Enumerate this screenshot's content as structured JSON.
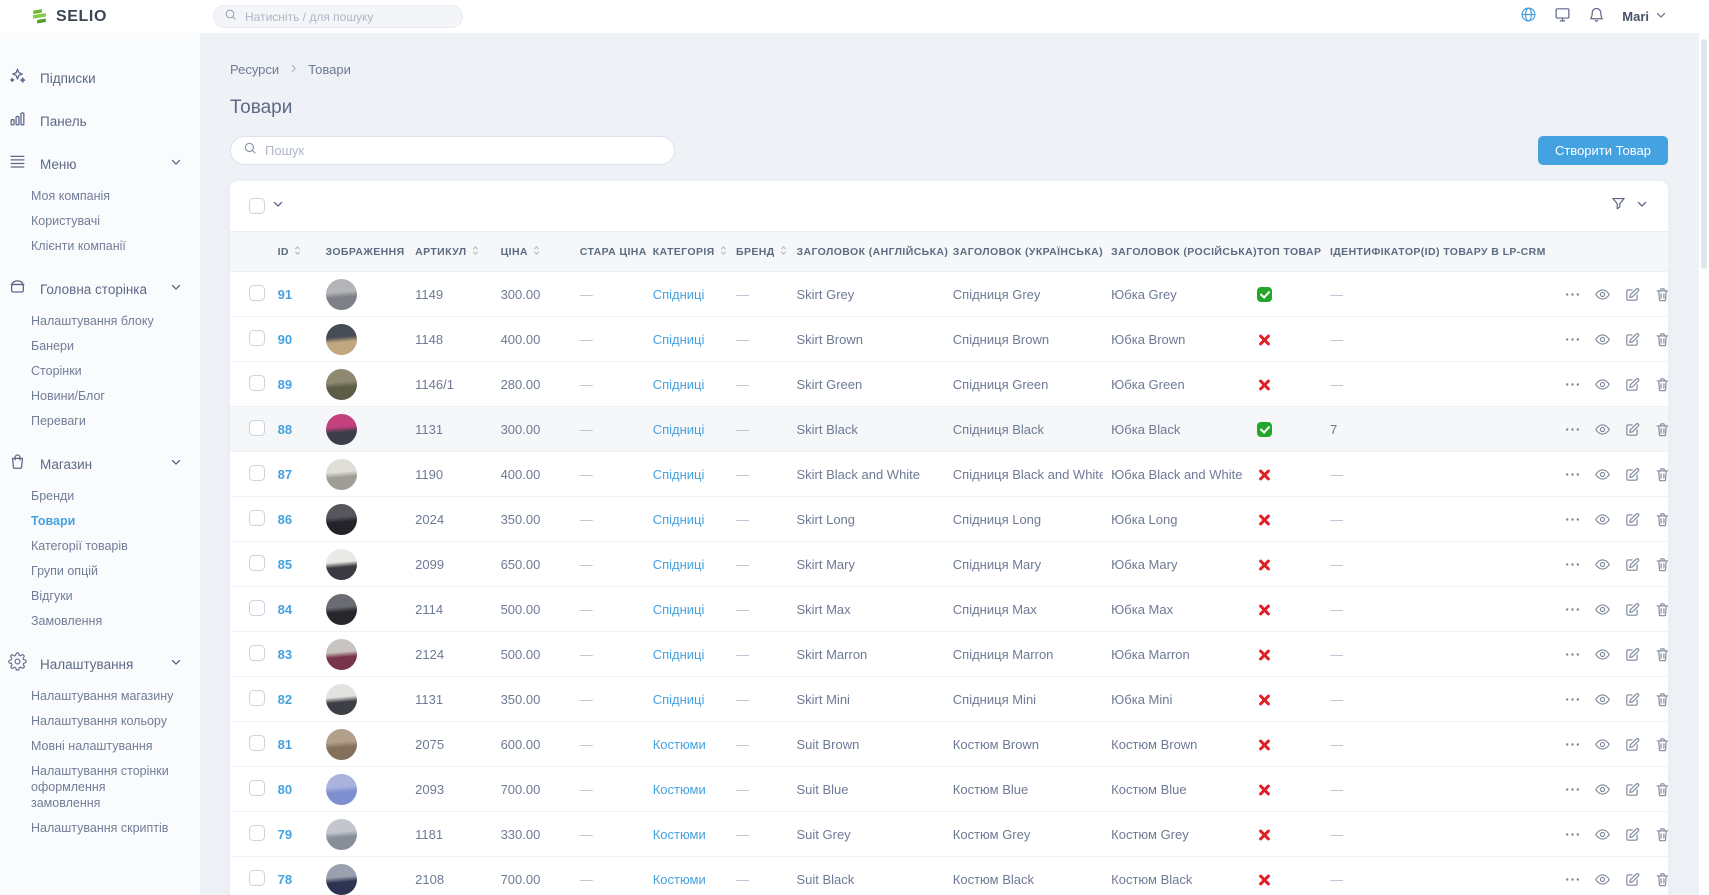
{
  "brand": {
    "name": "SELIO"
  },
  "colors": {
    "accent_blue": "#45a2e0",
    "success_green": "#23a62a",
    "danger_red": "#df1f26"
  },
  "topbar": {
    "search_placeholder": "Натисніть / для пошуку",
    "user": "Mari",
    "icons": [
      "globe-icon",
      "monitor-icon",
      "bell-icon"
    ]
  },
  "sidebar": {
    "sections": [
      {
        "id": "subscriptions",
        "label": "Підписки",
        "icon": "sparkles-icon",
        "children": []
      },
      {
        "id": "dashboard",
        "label": "Панель",
        "icon": "bar-chart-icon",
        "children": []
      },
      {
        "id": "menu",
        "label": "Меню",
        "icon": "menu-icon",
        "expanded": true,
        "children": [
          "Моя компанія",
          "Користувачі",
          "Клієнти компанії"
        ]
      },
      {
        "id": "home-page",
        "label": "Головна сторінка",
        "icon": "home-page-icon",
        "expanded": true,
        "children": [
          "Налаштування блоку",
          "Банери",
          "Сторінки",
          "Новини/Блог",
          "Переваги"
        ]
      },
      {
        "id": "shop",
        "label": "Магазин",
        "icon": "shop-bag-icon",
        "expanded": true,
        "children": [
          "Бренди",
          "Товари",
          "Категорії товарів",
          "Групи опцій",
          "Відгуки",
          "Замовлення"
        ],
        "active_child": "Товари"
      },
      {
        "id": "settings",
        "label": "Налаштування",
        "icon": "gear-icon",
        "expanded": true,
        "children": [
          "Налаштування магазину",
          "Налаштування кольору",
          "Мовні налаштування",
          "Налаштування сторінки оформлення замовлення",
          "Налаштування скриптів"
        ]
      }
    ]
  },
  "breadcrumb": [
    "Ресурси",
    "Товари"
  ],
  "page": {
    "title": "Товари",
    "search_placeholder": "Пошук",
    "create_button": "Створити Товар"
  },
  "table": {
    "columns": [
      {
        "key": "id",
        "label": "ID",
        "sortable": true
      },
      {
        "key": "image",
        "label": "ЗОБРАЖЕННЯ",
        "sortable": false
      },
      {
        "key": "sku",
        "label": "АРТИКУЛ",
        "sortable": true
      },
      {
        "key": "price",
        "label": "ЦІНА",
        "sortable": true
      },
      {
        "key": "old_price",
        "label": "СТАРА ЦІНА",
        "sortable": false
      },
      {
        "key": "category",
        "label": "КАТЕГОРІЯ",
        "sortable": true
      },
      {
        "key": "brand",
        "label": "БРЕНД",
        "sortable": true
      },
      {
        "key": "title_en",
        "label": "ЗАГОЛОВОК (АНГЛІЙСЬКА)",
        "sortable": false
      },
      {
        "key": "title_ua",
        "label": "ЗАГОЛОВОК (УКРАЇНСЬКА)",
        "sortable": false
      },
      {
        "key": "title_ru",
        "label": "ЗАГОЛОВОК (РОСІЙСЬКА)",
        "sortable": false
      },
      {
        "key": "top",
        "label": "ТОП ТОВАР",
        "sortable": false
      },
      {
        "key": "lpcrm",
        "label": "ІДЕНТИФІКАТОР(ID) ТОВАРУ В LP-CRM",
        "sortable": false
      },
      {
        "key": "actions",
        "label": "",
        "sortable": false
      }
    ],
    "top_product_icons": {
      "yes": "check-badge-icon",
      "no": "x-mark-icon"
    },
    "row_actions": [
      "more-actions-icon",
      "view-icon",
      "edit-icon",
      "delete-icon"
    ],
    "rows": [
      {
        "id": "91",
        "sku": "1149",
        "price": "300.00",
        "old_price": "—",
        "category": "Спідниці",
        "brand": "—",
        "title_en": "Skirt Grey",
        "title_ua": "Спідниця Grey",
        "title_ru": "Юбка Grey",
        "top": true,
        "lpcrm": "—",
        "highlighted": false,
        "avatar": [
          "#b4b5b8",
          "#7d8087"
        ]
      },
      {
        "id": "90",
        "sku": "1148",
        "price": "400.00",
        "old_price": "—",
        "category": "Спідниці",
        "brand": "—",
        "title_en": "Skirt Brown",
        "title_ua": "Спідниця Brown",
        "title_ru": "Юбка Brown",
        "top": false,
        "lpcrm": "—",
        "highlighted": false,
        "avatar": [
          "#474b55",
          "#c3a77e"
        ]
      },
      {
        "id": "89",
        "sku": "1146/1",
        "price": "280.00",
        "old_price": "—",
        "category": "Спідниці",
        "brand": "—",
        "title_en": "Skirt Green",
        "title_ua": "Спідниця Green",
        "title_ru": "Юбка Green",
        "top": false,
        "lpcrm": "—",
        "highlighted": false,
        "avatar": [
          "#8e8a72",
          "#5d5c46"
        ]
      },
      {
        "id": "88",
        "sku": "1131",
        "price": "300.00",
        "old_price": "—",
        "category": "Спідниці",
        "brand": "—",
        "title_en": "Skirt Black",
        "title_ua": "Спідниця Black",
        "title_ru": "Юбка Black",
        "top": true,
        "lpcrm": "7",
        "highlighted": true,
        "avatar": [
          "#c2417e",
          "#3c3f49"
        ]
      },
      {
        "id": "87",
        "sku": "1190",
        "price": "400.00",
        "old_price": "—",
        "category": "Спідниці",
        "brand": "—",
        "title_en": "Skirt Black and White",
        "title_ua": "Спідниця Black and White",
        "title_ru": "Юбка Black and White",
        "top": false,
        "lpcrm": "—",
        "highlighted": false,
        "avatar": [
          "#e0ded9",
          "#9f9d96"
        ]
      },
      {
        "id": "86",
        "sku": "2024",
        "price": "350.00",
        "old_price": "—",
        "category": "Спідниці",
        "brand": "—",
        "title_en": "Skirt Long",
        "title_ua": "Спідниця Long",
        "title_ru": "Юбка Long",
        "top": false,
        "lpcrm": "—",
        "highlighted": false,
        "avatar": [
          "#56565d",
          "#232329"
        ]
      },
      {
        "id": "85",
        "sku": "2099",
        "price": "650.00",
        "old_price": "—",
        "category": "Спідниці",
        "brand": "—",
        "title_en": "Skirt Mary",
        "title_ua": "Спідниця Mary",
        "title_ru": "Юбка Mary",
        "top": false,
        "lpcrm": "—",
        "highlighted": false,
        "avatar": [
          "#e9e9e7",
          "#3a3a40"
        ]
      },
      {
        "id": "84",
        "sku": "2114",
        "price": "500.00",
        "old_price": "—",
        "category": "Спідниці",
        "brand": "—",
        "title_en": "Skirt Max",
        "title_ua": "Спідниця Max",
        "title_ru": "Юбка Max",
        "top": false,
        "lpcrm": "—",
        "highlighted": false,
        "avatar": [
          "#6a6c72",
          "#26272c"
        ]
      },
      {
        "id": "83",
        "sku": "2124",
        "price": "500.00",
        "old_price": "—",
        "category": "Спідниці",
        "brand": "—",
        "title_en": "Skirt Marron",
        "title_ua": "Спідниця Marron",
        "title_ru": "Юбка Marron",
        "top": false,
        "lpcrm": "—",
        "highlighted": false,
        "avatar": [
          "#c9c4bf",
          "#78344c"
        ]
      },
      {
        "id": "82",
        "sku": "1131",
        "price": "350.00",
        "old_price": "—",
        "category": "Спідниці",
        "brand": "—",
        "title_en": "Skirt Mini",
        "title_ua": "Спідниця Mini",
        "title_ru": "Юбка Mini",
        "top": false,
        "lpcrm": "—",
        "highlighted": false,
        "avatar": [
          "#e2e2e0",
          "#3e3f45"
        ]
      },
      {
        "id": "81",
        "sku": "2075",
        "price": "600.00",
        "old_price": "—",
        "category": "Костюми",
        "brand": "—",
        "title_en": "Suit Brown",
        "title_ua": "Костюм Brown",
        "title_ru": "Костюм Brown",
        "top": false,
        "lpcrm": "—",
        "highlighted": false,
        "avatar": [
          "#b2a08b",
          "#85705d"
        ]
      },
      {
        "id": "80",
        "sku": "2093",
        "price": "700.00",
        "old_price": "—",
        "category": "Костюми",
        "brand": "—",
        "title_en": "Suit Blue",
        "title_ua": "Костюм Blue",
        "title_ru": "Костюм Blue",
        "top": false,
        "lpcrm": "—",
        "highlighted": false,
        "avatar": [
          "#a9b3dd",
          "#7e8ecf"
        ]
      },
      {
        "id": "79",
        "sku": "1181",
        "price": "330.00",
        "old_price": "—",
        "category": "Костюми",
        "brand": "—",
        "title_en": "Suit Grey",
        "title_ua": "Костюм Grey",
        "title_ru": "Костюм Grey",
        "top": false,
        "lpcrm": "—",
        "highlighted": false,
        "avatar": [
          "#c3c6cd",
          "#888d9a"
        ]
      },
      {
        "id": "78",
        "sku": "2108",
        "price": "700.00",
        "old_price": "—",
        "category": "Костюми",
        "brand": "—",
        "title_en": "Suit Black",
        "title_ua": "Костюм Black",
        "title_ru": "Костюм Black",
        "top": false,
        "lpcrm": "—",
        "highlighted": false,
        "avatar": [
          "#9aa0ad",
          "#2d3350"
        ]
      }
    ]
  }
}
